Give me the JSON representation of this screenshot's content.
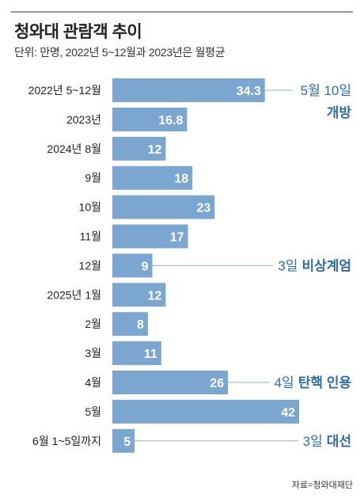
{
  "title": "청와대 관람객 추이",
  "subtitle": "단위: 만명, 2022년 5~12월과 2023년은 월평균",
  "source": "자료=청와대재단",
  "colors": {
    "bar": "#7ba6cf",
    "annotation": "#2e6ca8",
    "leader": "#8fb0cf"
  },
  "chart_data": {
    "type": "bar",
    "orientation": "horizontal",
    "categories": [
      "2022년 5~12월",
      "2023년",
      "2024년 8월",
      "9월",
      "10월",
      "11월",
      "12월",
      "2025년 1월",
      "2월",
      "3월",
      "4월",
      "5월",
      "6월 1~5일까지"
    ],
    "values": [
      34.3,
      16.8,
      12,
      18,
      23,
      17,
      9,
      12,
      8,
      11,
      26,
      42,
      5
    ],
    "value_labels": [
      "34.3",
      "16.8",
      "12",
      "18",
      "23",
      "17",
      "9",
      "12",
      "8",
      "11",
      "26",
      "42",
      "5"
    ],
    "xlim": [
      0,
      45
    ],
    "annotations": [
      {
        "index": 0,
        "num": "5월 10일",
        "text": "개방",
        "text_on_next_line": true
      },
      {
        "index": 6,
        "num": "3일",
        "text": "비상계엄"
      },
      {
        "index": 10,
        "num": "4일",
        "text": "탄핵 인용"
      },
      {
        "index": 12,
        "num": "3일",
        "text": "대선"
      }
    ]
  }
}
